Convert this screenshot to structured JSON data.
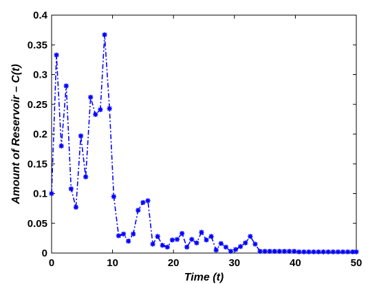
{
  "chart_data": {
    "type": "line",
    "xlabel": "Time (t)",
    "ylabel": "Amount of Reservoir – C(t)",
    "xlim": [
      0,
      50
    ],
    "ylim": [
      0,
      0.4
    ],
    "x_ticks": [
      "0",
      "10",
      "20",
      "30",
      "40",
      "50"
    ],
    "y_ticks": [
      "0",
      "0.05",
      "0.1",
      "0.15",
      "0.2",
      "0.25",
      "0.3",
      "0.35",
      "0.4"
    ],
    "grid": false,
    "legend": "none",
    "line_style": "dash-dot",
    "marker": "asterisk",
    "series": [
      {
        "color": "#0000ff",
        "x": [
          0,
          0.8,
          1.6,
          2.4,
          3.2,
          4.0,
          4.8,
          5.6,
          6.4,
          7.2,
          8.0,
          8.7,
          9.5,
          10.2,
          11.0,
          11.8,
          12.6,
          13.4,
          14.2,
          15.0,
          15.8,
          16.6,
          17.4,
          18.2,
          19.0,
          19.8,
          20.6,
          21.4,
          22.2,
          23.0,
          23.8,
          24.6,
          25.4,
          26.2,
          27.0,
          27.8,
          28.6,
          29.4,
          30.2,
          31.0,
          31.8,
          32.6,
          33.4,
          34.2,
          35.0,
          35.8,
          36.6,
          37.4,
          38.2,
          39.0,
          39.8,
          40.6,
          41.4,
          42.2,
          43.0,
          43.8,
          44.6,
          45.4,
          46.2,
          47.0,
          47.8,
          48.6,
          49.4,
          50.0
        ],
        "y": [
          0.1,
          0.333,
          0.18,
          0.281,
          0.108,
          0.077,
          0.197,
          0.128,
          0.262,
          0.233,
          0.241,
          0.367,
          0.243,
          0.095,
          0.029,
          0.032,
          0.02,
          0.032,
          0.072,
          0.085,
          0.088,
          0.015,
          0.028,
          0.013,
          0.01,
          0.022,
          0.023,
          0.033,
          0.01,
          0.023,
          0.017,
          0.035,
          0.022,
          0.028,
          0.005,
          0.016,
          0.01,
          0.003,
          0.006,
          0.011,
          0.017,
          0.028,
          0.015,
          0.003,
          0.003,
          0.003,
          0.003,
          0.003,
          0.003,
          0.003,
          0.003,
          0.002,
          0.002,
          0.002,
          0.002,
          0.002,
          0.002,
          0.002,
          0.002,
          0.002,
          0.002,
          0.002,
          0.002,
          0.002
        ]
      }
    ]
  }
}
